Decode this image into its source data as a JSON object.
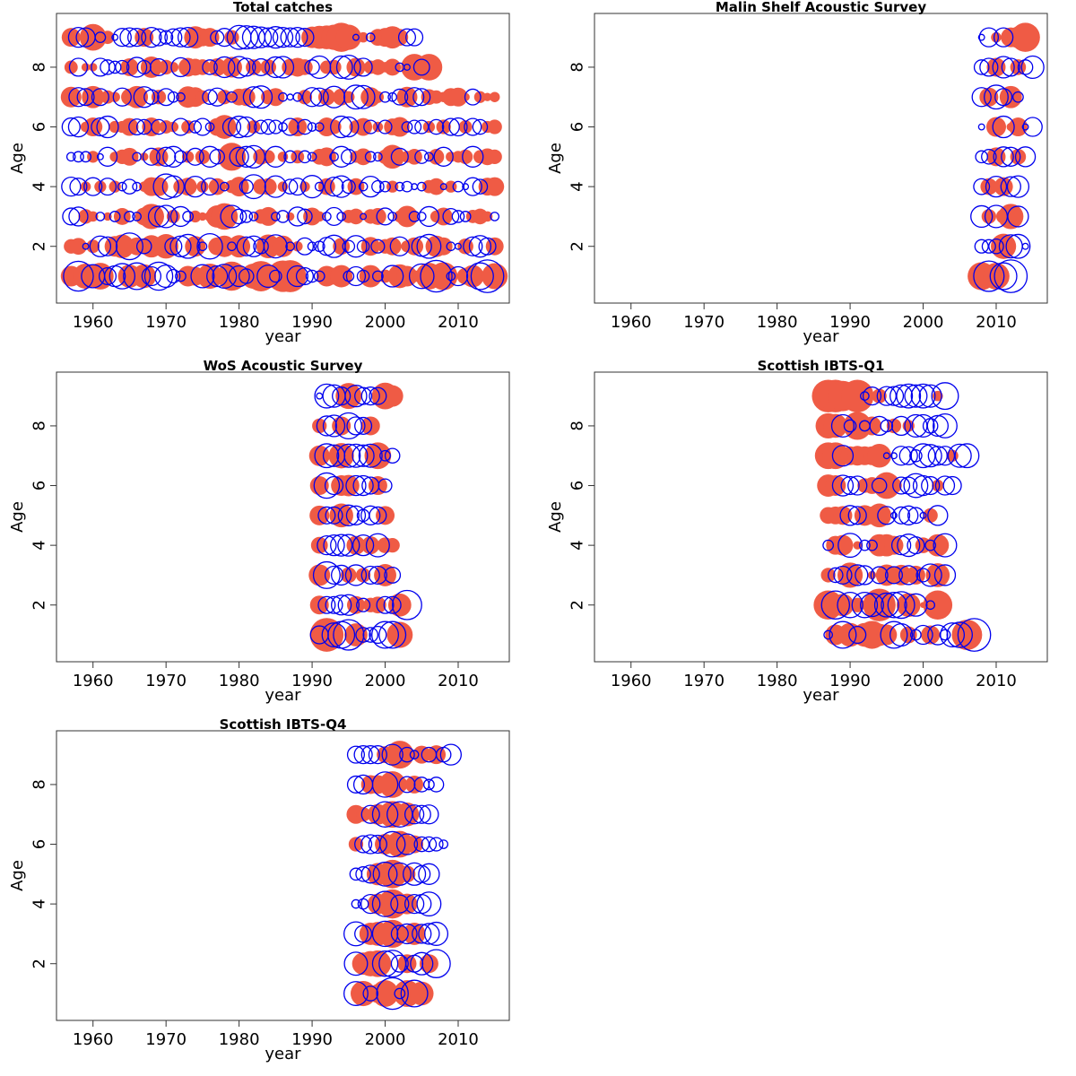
{
  "figure": {
    "description": "Residual bubble plots by age and year; filled red = positive residual, open blue = negative residual",
    "positive_color": "#EF5B45",
    "negative_color": "#0000EE"
  },
  "chart_data": [
    {
      "type": "scatter",
      "subtype": "bubble",
      "title": "Total catches",
      "xlabel": "year",
      "ylabel": "Age",
      "xlim": [
        1955,
        2017
      ],
      "ylim": [
        0.1,
        9.8
      ],
      "xticks": [
        "1960",
        "1970",
        "1980",
        "1990",
        "2000",
        "2010"
      ],
      "yticks": [
        "2",
        "4",
        "6",
        "8"
      ],
      "year_start": 1957,
      "ages": [
        1,
        2,
        3,
        4,
        5,
        6,
        7,
        8,
        9
      ],
      "residuals": {
        "1": [
          1.2,
          -2.5,
          1.8,
          -1.5,
          2.0,
          -0.8,
          -1.2,
          -1.8,
          1.5,
          -2.0,
          1.6,
          -1.0,
          -2.2,
          -1.4,
          -0.5,
          -0.3,
          1.2,
          1.0,
          -1.5,
          1.8,
          -1.2,
          -1.6,
          2.4,
          -1.2,
          -0.6,
          1.8,
          2.6,
          -1.4,
          -0.4,
          2.8,
          2.9,
          -1.2,
          -0.8,
          -0.4,
          -0.3,
          1.2,
          0.8,
          1.4,
          -0.3,
          -1.0,
          -0.4,
          1.4,
          -0.3,
          0.5,
          -1.3,
          1.6,
          1.2,
          0.4,
          -1.7,
          2.0,
          -2.8,
          2.2,
          -0.2,
          -1.0,
          0.8,
          1.4,
          -2.0,
          -3.0,
          1.9
        ],
        "2": [
          0.6,
          0.8,
          -0.1,
          0.5,
          -1.2,
          -1.0,
          1.2,
          1.6,
          -2.0,
          0.9,
          -0.6,
          1.4,
          0.6,
          1.7,
          -0.8,
          -1.2,
          -1.6,
          1.2,
          -0.2,
          -1.8,
          0.9,
          1.3,
          -0.2,
          1.4,
          -1.0,
          -1.2,
          -0.6,
          1.6,
          -1.5,
          1.3,
          -0.2,
          0.3,
          -0.8,
          -0.2,
          -0.3,
          -0.9,
          -1.4,
          0.8,
          -0.4,
          -1.3,
          -0.4,
          1.0,
          -0.5,
          0.6,
          0.9,
          -1.0,
          0.4,
          0.9,
          -1.1,
          -1.6,
          1.3,
          0.9,
          -0.2,
          -0.1,
          0.7,
          -1.0,
          -1.3,
          -0.8,
          0.9
        ],
        "3": [
          -0.8,
          -1.0,
          0.6,
          0.3,
          -0.2,
          0.2,
          -0.3,
          0.8,
          -0.3,
          -0.2,
          0.9,
          1.8,
          -1.2,
          -1.4,
          0.5,
          -1.1,
          -0.3,
          0.4,
          0.2,
          0.3,
          1.4,
          2.0,
          -1.4,
          -0.6,
          -0.4,
          -0.2,
          0.6,
          1.0,
          -0.2,
          -0.4,
          0.2,
          -1.0,
          -0.6,
          0.9,
          0.3,
          -0.2,
          -0.9,
          -0.2,
          0.5,
          0.7,
          -0.1,
          0.6,
          0.8,
          -0.8,
          -0.2,
          0.4,
          1.3,
          -0.3,
          -0.2,
          -1.1,
          0.4,
          0.9,
          -0.7,
          -0.4,
          -0.3,
          0.5,
          0.7,
          0.3,
          -0.2
        ],
        "4": [
          -1.0,
          -0.8,
          0.3,
          -0.9,
          0.4,
          -0.8,
          0.4,
          -0.2,
          -0.6,
          -0.2,
          0.3,
          1.0,
          1.0,
          -1.8,
          -1.3,
          0.6,
          0.9,
          -1.2,
          0.4,
          -0.8,
          0.8,
          -0.2,
          0.5,
          1.1,
          -0.5,
          -1.6,
          0.7,
          0.8,
          -1.3,
          0.3,
          -0.6,
          -0.8,
          0.3,
          -1.4,
          -0.2,
          0.8,
          -1.0,
          -1.3,
          -0.5,
          0.8,
          -0.2,
          -1.2,
          -0.4,
          -0.3,
          0.4,
          -0.2,
          -0.3,
          -0.1,
          -0.2,
          0.5,
          0.8,
          -0.1,
          0.4,
          -0.3,
          -0.1,
          -0.9,
          -0.6,
          0.9,
          1.0
        ],
        "5": [
          -0.2,
          -0.3,
          -0.3,
          0.4,
          -0.1,
          -1.0,
          0.3,
          0.6,
          0.9,
          -0.2,
          0.2,
          -0.8,
          1.0,
          -1.0,
          -1.2,
          -0.4,
          0.4,
          -0.8,
          0.6,
          -1.2,
          -0.6,
          0.3,
          2.2,
          -1.0,
          -1.2,
          -1.4,
          0.7,
          0.5,
          -1.2,
          0.3,
          -0.4,
          0.5,
          -0.4,
          -0.2,
          0.7,
          1.0,
          -0.2,
          -1.2,
          -0.6,
          0.4,
          0.8,
          -0.3,
          -0.2,
          0.6,
          1.6,
          -0.8,
          0.4,
          0.7,
          -0.5,
          -0.2,
          0.7,
          -1.0,
          0.3,
          0.4,
          0.6,
          -1.2,
          0.5,
          0.8,
          0.6
        ],
        "6": [
          -0.9,
          -1.1,
          0.3,
          1.0,
          -0.9,
          -1.3,
          0.4,
          0.4,
          0.9,
          -0.7,
          -0.6,
          1.0,
          -0.6,
          0.5,
          0.3,
          -0.8,
          0.5,
          -0.4,
          -0.8,
          -0.2,
          0.9,
          1.6,
          -0.9,
          -1.3,
          -1.1,
          0.5,
          -0.5,
          -0.6,
          -0.5,
          -0.2,
          -0.8,
          1.0,
          -0.6,
          -0.2,
          -0.2,
          1.0,
          0.6,
          -1.3,
          -1.1,
          0.5,
          0.9,
          -0.5,
          0.3,
          -0.5,
          0.8,
          1.1,
          -0.3,
          -0.5,
          -0.5,
          0.4,
          -0.6,
          0.6,
          -0.8,
          -0.9,
          0.5,
          -0.8,
          -0.6,
          0.4,
          0.6
        ],
        "7": [
          1.2,
          -1.0,
          -0.8,
          1.4,
          -0.8,
          0.5,
          0.3,
          -0.9,
          0.8,
          1.4,
          -1.2,
          -0.6,
          0.6,
          -0.8,
          -0.3,
          -0.2,
          1.3,
          1.1,
          0.5,
          -0.6,
          -0.9,
          0.6,
          -0.3,
          0.8,
          0.9,
          -1.2,
          -1.4,
          0.6,
          0.9,
          -0.2,
          -0.1,
          -0.2,
          0.6,
          -1.0,
          -0.9,
          0.8,
          -1.3,
          0.8,
          0.4,
          -1.6,
          -1.5,
          1.1,
          0.4,
          -0.3,
          -0.2,
          -0.7,
          1.2,
          -1.0,
          -0.8,
          0.7,
          0.5,
          0.3,
          0.9,
          1.0,
          0.2,
          -0.7,
          0.4,
          0.2,
          0.3
        ],
        "8": [
          0.5,
          -0.9,
          0.2,
          0.2,
          -0.9,
          -0.6,
          -0.4,
          -0.5,
          0.9,
          -1.1,
          -0.5,
          1.3,
          -0.8,
          0.6,
          0.3,
          -1.0,
          1.0,
          0.8,
          0.7,
          -0.6,
          0.9,
          -1.2,
          1.2,
          -1.3,
          -0.9,
          0.7,
          -0.8,
          0.7,
          -1.2,
          -1.3,
          0.8,
          1.0,
          0.7,
          -0.6,
          -1.4,
          0.5,
          0.6,
          -1.4,
          -1.6,
          1.0,
          -0.9,
          0.5,
          0.7,
          0.3,
          0.8,
          -0.2,
          -0.1,
          2.0,
          -0.7,
          2.0
        ],
        "9": [
          1.0,
          -1.1,
          -1.0,
          2.0,
          -0.3,
          0.5,
          -0.1,
          -0.9,
          -1.0,
          -0.9,
          1.0,
          -1.1,
          -0.8,
          -0.5,
          -0.8,
          -1.0,
          -1.1,
          1.4,
          0.9,
          1.0,
          -0.5,
          -0.9,
          0.6,
          -1.6,
          -1.5,
          -1.4,
          -1.2,
          -1.0,
          -1.3,
          -1.1,
          -1.0,
          -1.1,
          -0.9,
          1.3,
          1.5,
          1.6,
          1.8,
          2.4,
          1.8,
          -0.1,
          0.3,
          -0.2,
          0.8,
          1.0,
          1.4,
          0.8,
          -0.8,
          -0.8
        ]
      }
    },
    {
      "type": "scatter",
      "subtype": "bubble",
      "title": "Malin Shelf Acoustic Survey",
      "xlabel": "year",
      "ylabel": "Age",
      "xlim": [
        1955,
        2017
      ],
      "ylim": [
        0.1,
        9.8
      ],
      "xticks": [
        "1960",
        "1970",
        "1980",
        "1990",
        "2000",
        "2010"
      ],
      "yticks": [
        "2",
        "4",
        "6",
        "8"
      ],
      "year_start": 2008,
      "ages": [
        1,
        2,
        3,
        4,
        5,
        6,
        7,
        8,
        9
      ],
      "residuals": {
        "1": [
          2.2,
          -2.6,
          2.0,
          -2.0,
          -3.0
        ],
        "2": [
          -0.5,
          -0.5,
          -0.6,
          1.8,
          -1.5,
          -1.6,
          -0.1
        ],
        "3": [
          -1.3,
          0.6,
          -1.4,
          0.6,
          1.8,
          -1.2
        ],
        "4": [
          -0.7,
          0.8,
          -1.2,
          1.0,
          -1.1,
          -1.3
        ],
        "5": [
          -0.4,
          -0.6,
          1.0,
          -1.1,
          -1.0,
          0.7,
          -1.1
        ],
        "6": [
          -0.1,
          0.0,
          1.1,
          -1.3,
          0.2,
          1.0,
          -0.1,
          -1.0
        ],
        "7": [
          -1.0,
          1.0,
          -1.6,
          -0.8,
          1.4,
          -0.3
        ],
        "8": [
          -0.6,
          -0.9,
          1.0,
          -1.3,
          -0.9,
          0.7,
          -0.6,
          -1.4
        ],
        "9": [
          -0.1,
          -1.0,
          0.3,
          -1.0,
          1.1,
          1.3,
          2.4
        ]
      }
    },
    {
      "type": "scatter",
      "subtype": "bubble",
      "title": "WoS Acoustic Survey",
      "xlabel": "year",
      "ylabel": "Age",
      "xlim": [
        1955,
        2017
      ],
      "ylim": [
        0.1,
        9.8
      ],
      "xticks": [
        "1960",
        "1970",
        "1980",
        "1990",
        "2000",
        "2010"
      ],
      "yticks": [
        "2",
        "4",
        "6",
        "8"
      ],
      "year_start": 1991,
      "ages": [
        1,
        2,
        3,
        4,
        5,
        6,
        7,
        8,
        9
      ],
      "residuals": {
        "1": [
          -0.9,
          3.2,
          -1.6,
          -2.0,
          -2.6,
          1.5,
          -0.6,
          -0.6,
          -0.8,
          -2.0,
          -2.0,
          1.9
        ],
        "2": [
          1.0,
          -0.8,
          -0.8,
          -1.1,
          -1.2,
          0.9,
          -0.5,
          0.6,
          0.8,
          -0.8,
          -0.8,
          1.5,
          -2.4
        ],
        "3": [
          1.3,
          -2.0,
          -0.9,
          -1.1,
          0.7,
          -1.2,
          0.6,
          -0.9,
          -0.9,
          1.4,
          -0.7
        ],
        "4": [
          0.8,
          -1.0,
          -1.2,
          -1.3,
          -1.3,
          1.0,
          -1.2,
          0.9,
          -1.5,
          0.7,
          0.6
        ],
        "5": [
          1.1,
          -0.8,
          -0.8,
          1.6,
          -1.2,
          -1.0,
          -0.4,
          -1.0,
          -0.8,
          1.0
        ],
        "6": [
          1.0,
          -1.8,
          -0.9,
          1.2,
          1.3,
          -1.1,
          -1.1,
          -0.8,
          1.0,
          -0.5
        ],
        "7": [
          1.2,
          -1.6,
          -1.3,
          1.8,
          -1.5,
          -1.5,
          -1.3,
          -1.5,
          2.0,
          -0.3,
          -0.6
        ],
        "8": [
          0.6,
          -1.1,
          -1.3,
          1.0,
          -1.9,
          -0.9,
          -0.8,
          1.0
        ],
        "9": [
          -0.1,
          -1.6,
          -1.4,
          -0.9,
          1.9,
          -1.3,
          -0.8,
          -0.9,
          -0.8,
          2.0,
          1.3
        ]
      }
    },
    {
      "type": "scatter",
      "subtype": "bubble",
      "title": "Scottish IBTS-Q1",
      "xlabel": "year",
      "ylabel": "Age",
      "xlim": [
        1955,
        2017
      ],
      "ylim": [
        0.1,
        9.8
      ],
      "xticks": [
        "1960",
        "1970",
        "1980",
        "1990",
        "2000",
        "2010"
      ],
      "yticks": [
        "2",
        "4",
        "6",
        "8"
      ],
      "year_start": 1987,
      "ages": [
        1,
        2,
        3,
        4,
        5,
        6,
        7,
        8,
        9
      ],
      "residuals": {
        "1": [
          -0.2,
          1.2,
          -2.0,
          1.6,
          -0.8,
          1.6,
          2.2,
          1.4,
          1.2,
          -2.0,
          -1.4,
          0.8,
          -0.3,
          -1.0,
          1.0,
          -1.1,
          -0.3,
          -1.6,
          -1.8,
          2.6,
          -3.0
        ],
        "2": [
          2.4,
          -2.2,
          1.4,
          -1.8,
          0.6,
          -1.8,
          -1.5,
          3.0,
          -1.6,
          -1.8,
          -2.0,
          1.6,
          -1.4,
          0.1,
          -0.2,
          2.4
        ],
        "3": [
          0.6,
          -0.6,
          -0.9,
          1.8,
          -1.2,
          -1.0,
          0.2,
          -0.8,
          1.3,
          -0.8,
          1.2,
          -1.0,
          1.0,
          -0.5,
          -1.4,
          1.6,
          -1.2
        ],
        "4": [
          -0.3,
          1.0,
          1.2,
          -1.6,
          0.2,
          -0.3,
          -0.3,
          1.4,
          1.4,
          1.0,
          -1.0,
          -1.4,
          -0.8,
          0.7,
          -0.3,
          1.4,
          -1.5
        ],
        "5": [
          0.8,
          0.9,
          1.0,
          -1.1,
          -0.9,
          1.2,
          0.9,
          1.6,
          -0.9,
          -0.1,
          -0.8,
          -1.0,
          -0.7,
          -0.1,
          0.6,
          -1.1
        ],
        "6": [
          1.4,
          1.2,
          -1.2,
          -0.9,
          -1.0,
          0.6,
          0.8,
          -0.6,
          2.0,
          0.7,
          -0.8,
          -0.8,
          -1.6,
          -1.1,
          -0.9,
          0.4,
          -1.0,
          -0.9
        ],
        "7": [
          2.0,
          2.0,
          -1.2,
          1.0,
          1.1,
          1.0,
          1.0,
          1.6,
          -0.1,
          -0.1,
          -1.0,
          -0.9,
          -0.4,
          -1.6,
          -1.4,
          -1.0,
          -1.0,
          0.4,
          -1.5,
          -1.6
        ],
        "8": [
          1.8,
          1.6,
          -1.4,
          -0.4,
          2.2,
          -0.3,
          1.0,
          -1.0,
          -0.4,
          0.6,
          -1.0,
          0.4,
          -1.4,
          -1.4,
          -0.6,
          -1.2,
          -1.6
        ],
        "9": [
          3.0,
          3.0,
          2.6,
          0.8,
          3.0,
          -0.2,
          -0.9,
          0.6,
          -1.0,
          -1.0,
          -1.4,
          -1.6,
          -1.4,
          -1.6,
          -1.4,
          0.3,
          -2.0
        ]
      }
    },
    {
      "type": "scatter",
      "subtype": "bubble",
      "title": "Scottish IBTS-Q4",
      "xlabel": "year",
      "ylabel": "Age",
      "xlim": [
        1955,
        2017
      ],
      "ylim": [
        0.1,
        9.8
      ],
      "xticks": [
        "1960",
        "1970",
        "1980",
        "1990",
        "2000",
        "2010"
      ],
      "yticks": [
        "2",
        "4",
        "6",
        "8"
      ],
      "year_start": 1996,
      "ages": [
        1,
        2,
        3,
        4,
        5,
        6,
        7,
        8,
        9
      ],
      "residuals": {
        "1": [
          -1.6,
          1.8,
          -0.6,
          1.0,
          2.0,
          -2.8,
          -0.3,
          2.0,
          -2.0,
          1.6
        ],
        "2": [
          -1.5,
          1.4,
          1.8,
          2.0,
          -1.8,
          -2.0,
          -0.8,
          1.0,
          -0.8,
          -1.4,
          1.0,
          -2.2
        ],
        "3": [
          -1.6,
          -0.8,
          1.4,
          1.6,
          -1.8,
          2.2,
          -0.8,
          -1.1,
          1.4,
          -1.0,
          -1.2,
          -1.5
        ],
        "4": [
          -0.2,
          -0.3,
          -1.0,
          1.2,
          -1.8,
          2.4,
          -0.9,
          1.2,
          -1.0,
          -1.0,
          -1.6
        ],
        "5": [
          -0.4,
          -0.6,
          -0.9,
          1.4,
          -1.6,
          2.3,
          -1.4,
          0.8,
          -1.4,
          -0.8,
          -1.2
        ],
        "6": [
          0.6,
          -0.8,
          -1.0,
          -0.9,
          1.2,
          -1.8,
          2.0,
          -1.2,
          0.9,
          -0.6,
          -0.6,
          -0.5,
          -0.2
        ],
        "7": [
          1.0,
          0.6,
          -0.9,
          1.2,
          -1.8,
          2.0,
          -1.8,
          1.6,
          -1.0,
          -0.9,
          -1.0
        ],
        "8": [
          -0.8,
          -1.0,
          1.0,
          1.0,
          -1.8,
          2.0,
          0.7,
          -0.7,
          0.9,
          -0.6,
          -0.3,
          -0.6
        ],
        "9": [
          -0.8,
          -0.9,
          -0.9,
          -0.9,
          0.8,
          -1.2,
          2.2,
          -0.6,
          -0.2,
          0.9,
          -0.6,
          1.0,
          -0.6,
          -1.2
        ]
      }
    }
  ]
}
